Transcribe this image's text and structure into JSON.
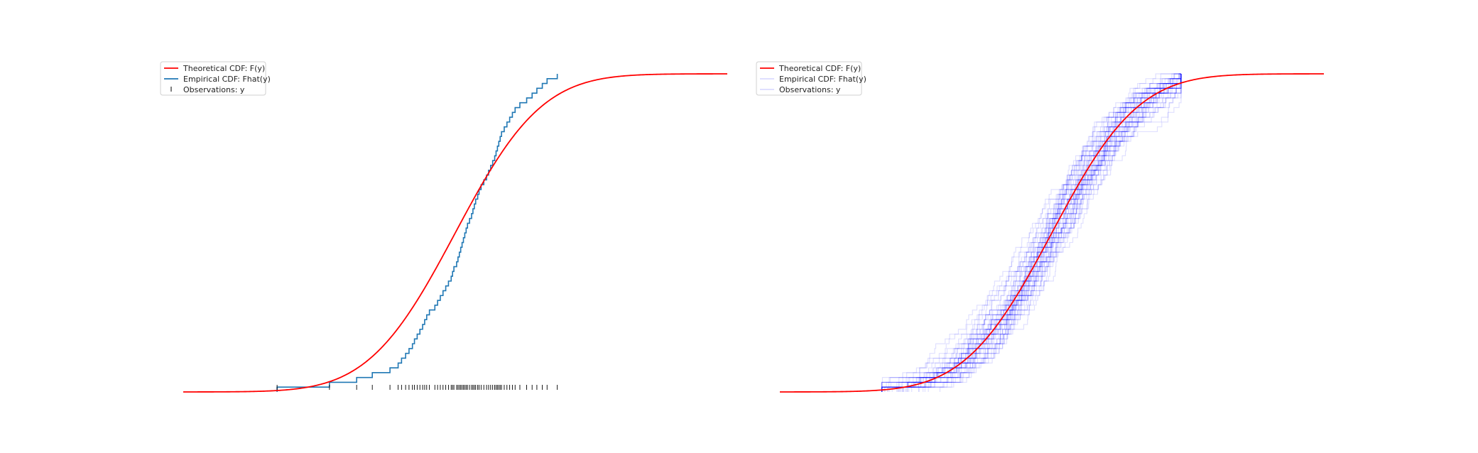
{
  "chart_data": [
    {
      "type": "line",
      "panel": "left",
      "title": "",
      "xlabel": "",
      "ylabel": "",
      "axes_visible": false,
      "grid": false,
      "xlim": [
        -4,
        4
      ],
      "ylim": [
        0,
        1
      ],
      "legend_placement": "upper-left",
      "legend": [
        {
          "label": "Theoretical CDF: F(y)",
          "color": "#ff0000",
          "style": "line"
        },
        {
          "label": "Empirical CDF: Fhat(y)",
          "color": "#1f77b4",
          "style": "line"
        },
        {
          "label": "Observations: y",
          "color": "#000000",
          "style": "tick"
        }
      ],
      "theoretical": {
        "name": "Theoretical CDF: F(y)",
        "distribution": "normal",
        "mean": 0,
        "sd": 1,
        "color": "#ff0000"
      },
      "empirical": {
        "name": "Empirical CDF: Fhat(y)",
        "color": "#1f77b4",
        "x_end": 1.5
      },
      "observations": [
        -2.62,
        -1.85,
        -1.45,
        -1.22,
        -0.96,
        -0.84,
        -0.79,
        -0.73,
        -0.68,
        -0.63,
        -0.6,
        -0.56,
        -0.52,
        -0.48,
        -0.45,
        -0.42,
        -0.38,
        -0.3,
        -0.26,
        -0.22,
        -0.18,
        -0.14,
        -0.1,
        -0.06,
        -0.04,
        -0.02,
        0.02,
        0.04,
        0.06,
        0.08,
        0.1,
        0.12,
        0.14,
        0.16,
        0.18,
        0.21,
        0.24,
        0.26,
        0.28,
        0.3,
        0.33,
        0.35,
        0.38,
        0.42,
        0.46,
        0.49,
        0.52,
        0.55,
        0.58,
        0.6,
        0.62,
        0.64,
        0.66,
        0.68,
        0.72,
        0.76,
        0.8,
        0.84,
        0.88,
        0.95,
        1.05,
        1.13,
        1.2,
        1.28,
        1.35,
        1.5
      ]
    },
    {
      "type": "line",
      "panel": "right",
      "title": "",
      "xlabel": "",
      "ylabel": "",
      "axes_visible": false,
      "grid": false,
      "xlim": [
        -4,
        4
      ],
      "ylim": [
        0,
        1
      ],
      "legend_placement": "upper-left",
      "legend": [
        {
          "label": "Theoretical CDF: F(y)",
          "color": "#ff0000",
          "style": "line"
        },
        {
          "label": "Empirical CDF: Fhat(y)",
          "color": "#0000ff",
          "style": "faint-line"
        },
        {
          "label": "Observations: y",
          "color": "#0000ff",
          "style": "faint-line"
        }
      ],
      "theoretical": {
        "name": "Theoretical CDF: F(y)",
        "distribution": "normal",
        "mean": 0,
        "sd": 1,
        "color": "#ff0000"
      },
      "empirical_replicates": {
        "count": 50,
        "sample_size": 66,
        "color": "#0000ff",
        "alpha": 0.12,
        "x_start": -2.5,
        "x_end": 1.9
      }
    }
  ]
}
